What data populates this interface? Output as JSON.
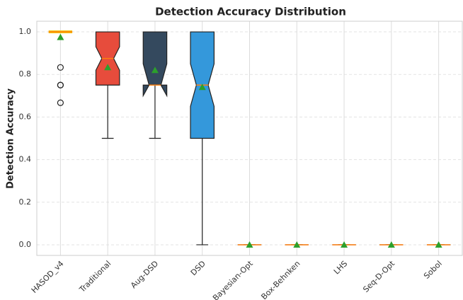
{
  "chart_data": {
    "type": "boxplot",
    "title": "Detection Accuracy Distribution",
    "y_label": "Detection Accuracy",
    "categories": [
      "HASOD_v4",
      "Traditional",
      "Aug-DSD",
      "DSD",
      "Bayesian-Opt",
      "Box-Behnken",
      "LHS",
      "Seq-D-Opt",
      "Sobol"
    ],
    "boxes": [
      {
        "q1": 1.0,
        "median": 1.0,
        "q3": 1.0,
        "whislo": 1.0,
        "whishi": 1.0,
        "mean": 0.975,
        "outliers": [
          0.833,
          0.75,
          0.75,
          0.667
        ],
        "color": "#f1c40f"
      },
      {
        "q1": 0.75,
        "median": 0.875,
        "q3": 1.0,
        "whislo": 0.5,
        "whishi": 1.0,
        "mean": 0.833,
        "notch": [
          0.82,
          0.93
        ],
        "outliers": [],
        "color": "#e74c3c"
      },
      {
        "q1": 0.75,
        "median": 0.75,
        "q3": 1.0,
        "whislo": 0.5,
        "whishi": 1.0,
        "mean": 0.82,
        "notch": [
          0.7,
          0.85
        ],
        "outliers": [],
        "color": "#34495e"
      },
      {
        "q1": 0.5,
        "median": 0.75,
        "q3": 1.0,
        "whislo": 0.0,
        "whishi": 1.0,
        "mean": 0.74,
        "notch": [
          0.65,
          0.85
        ],
        "outliers": [],
        "color": "#3498db"
      },
      {
        "q1": 0.0,
        "median": 0.0,
        "q3": 0.0,
        "whislo": 0.0,
        "whishi": 0.0,
        "mean": 0.0,
        "outliers": [],
        "color": "#9b59b6"
      },
      {
        "q1": 0.0,
        "median": 0.0,
        "q3": 0.0,
        "whislo": 0.0,
        "whishi": 0.0,
        "mean": 0.0,
        "outliers": [],
        "color": "#1abc9c"
      },
      {
        "q1": 0.0,
        "median": 0.0,
        "q3": 0.0,
        "whislo": 0.0,
        "whishi": 0.0,
        "mean": 0.0,
        "outliers": [],
        "color": "#e67e22"
      },
      {
        "q1": 0.0,
        "median": 0.0,
        "q3": 0.0,
        "whislo": 0.0,
        "whishi": 0.0,
        "mean": 0.0,
        "outliers": [],
        "color": "#95a5a6"
      },
      {
        "q1": 0.0,
        "median": 0.0,
        "q3": 0.0,
        "whislo": 0.0,
        "whishi": 0.0,
        "mean": 0.0,
        "outliers": [],
        "color": "#16a085"
      }
    ],
    "median_color": "#ff7f0e",
    "mean_color": "#2ca02c",
    "ylim": [
      -0.05,
      1.05
    ],
    "yticks": [
      {
        "value": 0,
        "label": "0.0"
      },
      0.2,
      0.4,
      0.6,
      0.8,
      {
        "value": 1,
        "label": "1.0"
      }
    ],
    "grid": true
  }
}
